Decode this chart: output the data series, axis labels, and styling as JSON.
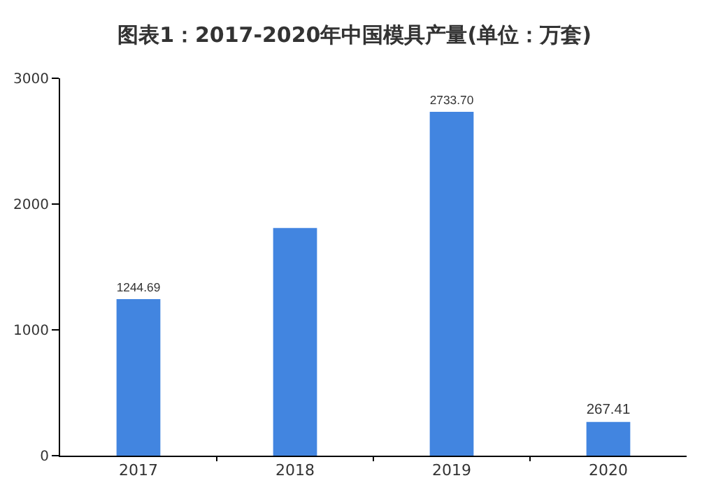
{
  "chart_data": {
    "type": "bar",
    "title": "图表1：2017-2020年中国模具产量(单位：万套)",
    "categories": [
      "2017",
      "2018",
      "2019",
      "2020"
    ],
    "values": [
      1244.69,
      1810,
      2733.7,
      267.41
    ],
    "value_labels": [
      "1244.69",
      null,
      "2733.70",
      "267.41"
    ],
    "color": "#4285e0",
    "ylim": [
      0,
      3000
    ],
    "yticks": [
      0,
      1000,
      2000,
      3000
    ],
    "grid": false,
    "legend": false
  }
}
